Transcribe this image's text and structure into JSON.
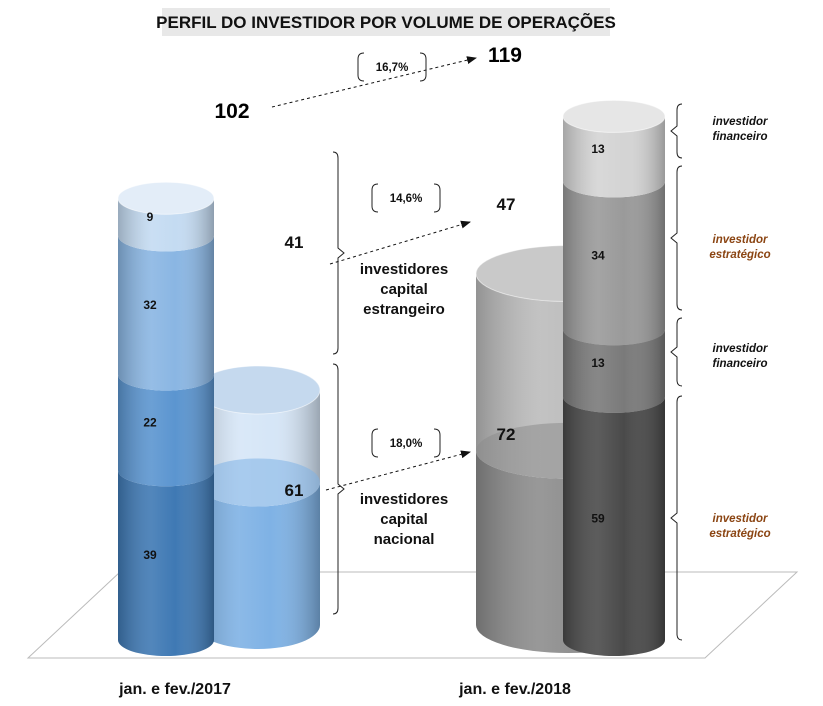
{
  "title": "PERFIL DO INVESTIDOR POR VOLUME DE OPERAÇÕES",
  "chart_data": {
    "type": "bar",
    "subtype": "stacked-3d-cylinders",
    "categories": [
      "jan. e fev./2017",
      "jan. e fev./2018"
    ],
    "totals": [
      102,
      119
    ],
    "group_series": [
      {
        "name": "investidores capital nacional",
        "values": [
          61,
          72
        ]
      },
      {
        "name": "investidores capital estrangeiro",
        "values": [
          41,
          47
        ]
      }
    ],
    "detail_series": [
      {
        "group": "nacional",
        "type": "investidor estratégico",
        "values": [
          39,
          59
        ]
      },
      {
        "group": "nacional",
        "type": "investidor financeiro",
        "values": [
          22,
          13
        ]
      },
      {
        "group": "estrangeiro",
        "type": "investidor estratégico",
        "values": [
          32,
          34
        ]
      },
      {
        "group": "estrangeiro",
        "type": "investidor financeiro",
        "values": [
          9,
          13
        ]
      }
    ],
    "growth": {
      "total": "16,7%",
      "estrangeiro": "14,6%",
      "nacional": "18,0%"
    },
    "group_labels": {
      "estrangeiro": [
        "investidores",
        "capital",
        "estrangeiro"
      ],
      "nacional": [
        "investidores",
        "capital",
        "nacional"
      ]
    },
    "type_labels": {
      "financeiro": [
        "investidor",
        "financeiro"
      ],
      "estrategico": [
        "investidor",
        "estratégico"
      ]
    },
    "colors": {
      "y2017_outer_nacional": "#7fb2e5",
      "y2017_outer_estrangeiro": "#d6e6f7",
      "y2017_inner": [
        "#3f79b4",
        "#5b95d0",
        "#8ab6e3",
        "#c4dbf2"
      ],
      "y2018_outer_nacional": "#8d8d8d",
      "y2018_outer_estrangeiro": "#bcbcbc",
      "y2018_inner": [
        "#4a4a4a",
        "#7a7a7a",
        "#9a9a9a",
        "#d4d4d4"
      ],
      "estrategico_text": "#8B4513"
    }
  }
}
